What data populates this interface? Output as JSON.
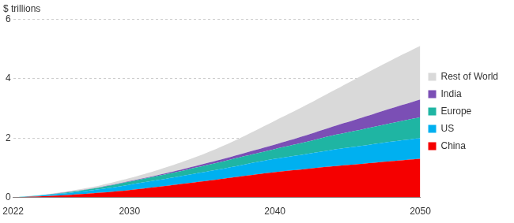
{
  "chart_data": {
    "type": "area",
    "ylabel": "$ trillions",
    "x": [
      2022,
      2024,
      2026,
      2028,
      2030,
      2032,
      2034,
      2036,
      2038,
      2040,
      2042,
      2044,
      2046,
      2048,
      2050
    ],
    "series": [
      {
        "name": "China",
        "color": "#f50000",
        "values": [
          0,
          0.04,
          0.09,
          0.16,
          0.25,
          0.36,
          0.48,
          0.6,
          0.73,
          0.85,
          0.95,
          1.05,
          1.13,
          1.22,
          1.3
        ]
      },
      {
        "name": "US",
        "color": "#00b0f0",
        "values": [
          0,
          0.03,
          0.07,
          0.12,
          0.18,
          0.23,
          0.28,
          0.33,
          0.39,
          0.45,
          0.5,
          0.56,
          0.61,
          0.66,
          0.7
        ]
      },
      {
        "name": "Europe",
        "color": "#1fb5a3",
        "values": [
          0,
          0.01,
          0.03,
          0.06,
          0.1,
          0.14,
          0.18,
          0.23,
          0.28,
          0.33,
          0.4,
          0.48,
          0.55,
          0.62,
          0.7
        ]
      },
      {
        "name": "India",
        "color": "#7b4fb5",
        "values": [
          0,
          0,
          0.01,
          0.01,
          0.02,
          0.03,
          0.05,
          0.08,
          0.11,
          0.15,
          0.22,
          0.3,
          0.4,
          0.5,
          0.6
        ]
      },
      {
        "name": "Rest of World",
        "color": "#d9d9d9",
        "values": [
          0,
          0.01,
          0.03,
          0.06,
          0.1,
          0.17,
          0.27,
          0.4,
          0.58,
          0.8,
          1.0,
          1.2,
          1.42,
          1.62,
          1.8
        ]
      }
    ],
    "xlim": [
      2022,
      2050
    ],
    "xticks": [
      2022,
      2030,
      2040,
      2050
    ],
    "ylim": [
      0,
      6
    ],
    "yticks": [
      0,
      2,
      4,
      6
    ],
    "stacked": true,
    "grid": true,
    "legend": "right"
  }
}
